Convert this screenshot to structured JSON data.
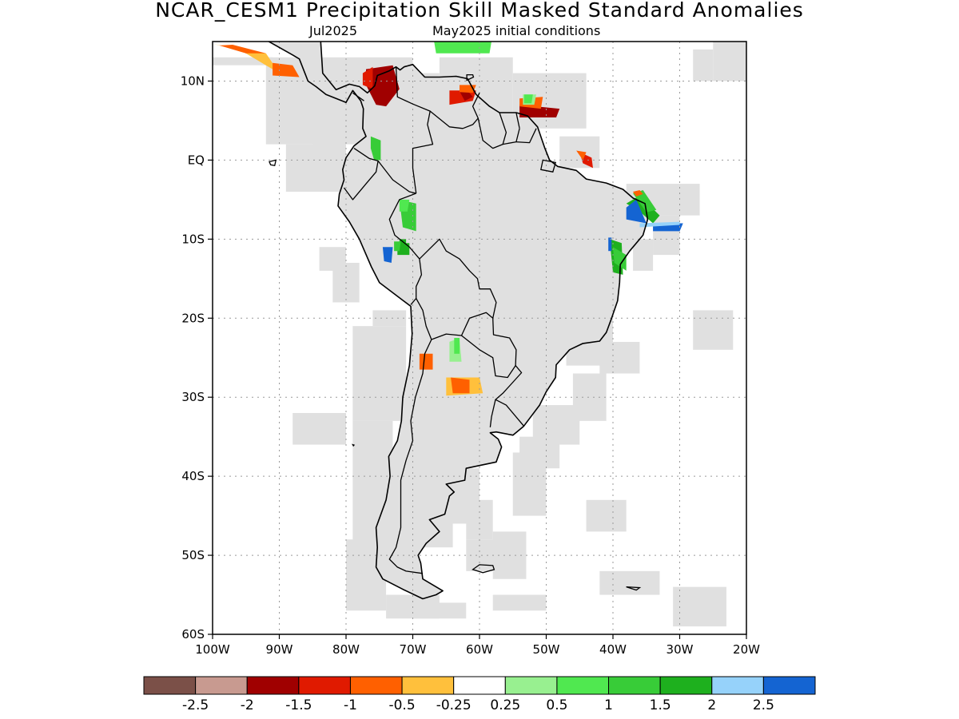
{
  "title": "NCAR_CESM1 Precipitation Skill Masked Standard Anomalies",
  "subtitle_left": "Jul2025",
  "subtitle_right": "May2025 initial conditions",
  "map": {
    "lon_range": [
      -100,
      -20
    ],
    "lat_range": [
      -60,
      15
    ],
    "lat_ticks": [
      {
        "value": 10,
        "label": "10N"
      },
      {
        "value": 0,
        "label": "EQ"
      },
      {
        "value": -10,
        "label": "10S"
      },
      {
        "value": -20,
        "label": "20S"
      },
      {
        "value": -30,
        "label": "30S"
      },
      {
        "value": -40,
        "label": "40S"
      },
      {
        "value": -50,
        "label": "50S"
      },
      {
        "value": -60,
        "label": "60S"
      }
    ],
    "lon_ticks": [
      {
        "value": -100,
        "label": "100W"
      },
      {
        "value": -90,
        "label": "90W"
      },
      {
        "value": -80,
        "label": "80W"
      },
      {
        "value": -70,
        "label": "70W"
      },
      {
        "value": -60,
        "label": "60W"
      },
      {
        "value": -50,
        "label": "50W"
      },
      {
        "value": -40,
        "label": "40W"
      },
      {
        "value": -30,
        "label": "30W"
      },
      {
        "value": -20,
        "label": "20W"
      }
    ],
    "mask_color": "#e0e0e0",
    "coast_color": "#000000"
  },
  "colorbar": {
    "colors": [
      "#7b5048",
      "#c89a90",
      "#a00000",
      "#e01a00",
      "#ff6000",
      "#ffc03c",
      "#ffffff",
      "#98f090",
      "#50e850",
      "#38cc38",
      "#1eb01e",
      "#96d2fa",
      "#1464d2"
    ],
    "labels": [
      "-2.5",
      "-2",
      "-1.5",
      "-1",
      "-0.5",
      "-0.25",
      "0.25",
      "0.5",
      "1",
      "1.5",
      "2",
      "2.5"
    ]
  }
}
